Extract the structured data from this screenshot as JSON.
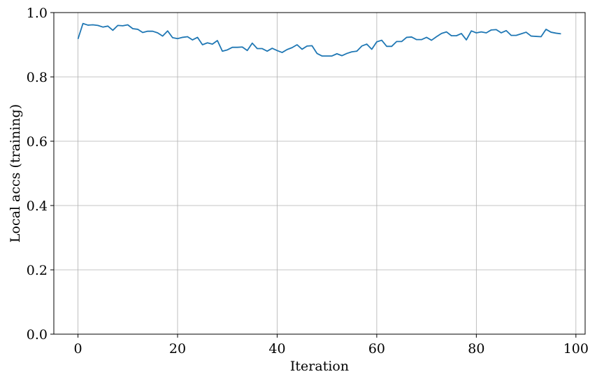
{
  "chart_data": {
    "type": "line",
    "title": "",
    "xlabel": "Iteration",
    "ylabel": "Local accs (training)",
    "xlim": [
      -4.85,
      101.85
    ],
    "ylim": [
      0.0,
      1.0
    ],
    "xticks": [
      0,
      20,
      40,
      60,
      80,
      100
    ],
    "yticks": [
      0.0,
      0.2,
      0.4,
      0.6,
      0.8,
      1.0
    ],
    "xtick_labels": [
      "0",
      "20",
      "40",
      "60",
      "80",
      "100"
    ],
    "ytick_labels": [
      "0.0",
      "0.2",
      "0.4",
      "0.6",
      "0.8",
      "1.0"
    ],
    "grid": true,
    "legend": "none",
    "series": [
      {
        "color": "#1f77b4",
        "x": [
          0,
          1,
          2,
          3,
          4,
          5,
          6,
          7,
          8,
          9,
          10,
          11,
          12,
          13,
          14,
          15,
          16,
          17,
          18,
          19,
          20,
          21,
          22,
          23,
          24,
          25,
          26,
          27,
          28,
          29,
          30,
          31,
          32,
          33,
          34,
          35,
          36,
          37,
          38,
          39,
          40,
          41,
          42,
          43,
          44,
          45,
          46,
          47,
          48,
          49,
          50,
          51,
          52,
          53,
          54,
          55,
          56,
          57,
          58,
          59,
          60,
          61,
          62,
          63,
          64,
          65,
          66,
          67,
          68,
          69,
          70,
          71,
          72,
          73,
          74,
          75,
          76,
          77,
          78,
          79,
          80,
          81,
          82,
          83,
          84,
          85,
          86,
          87,
          88,
          89,
          90,
          91,
          92,
          93,
          94,
          95,
          96,
          97
        ],
        "values": [
          0.918,
          0.966,
          0.961,
          0.962,
          0.96,
          0.955,
          0.958,
          0.945,
          0.96,
          0.959,
          0.962,
          0.95,
          0.948,
          0.938,
          0.942,
          0.942,
          0.937,
          0.927,
          0.943,
          0.922,
          0.919,
          0.923,
          0.925,
          0.915,
          0.923,
          0.9,
          0.906,
          0.902,
          0.913,
          0.88,
          0.884,
          0.892,
          0.892,
          0.893,
          0.882,
          0.905,
          0.888,
          0.888,
          0.88,
          0.889,
          0.882,
          0.876,
          0.885,
          0.891,
          0.9,
          0.886,
          0.896,
          0.897,
          0.873,
          0.865,
          0.865,
          0.865,
          0.872,
          0.866,
          0.873,
          0.878,
          0.88,
          0.896,
          0.902,
          0.886,
          0.909,
          0.914,
          0.895,
          0.895,
          0.91,
          0.91,
          0.923,
          0.924,
          0.916,
          0.916,
          0.923,
          0.914,
          0.925,
          0.935,
          0.94,
          0.928,
          0.928,
          0.935,
          0.915,
          0.943,
          0.937,
          0.94,
          0.937,
          0.946,
          0.947,
          0.937,
          0.944,
          0.929,
          0.929,
          0.934,
          0.939,
          0.927,
          0.926,
          0.925,
          0.948,
          0.939,
          0.936,
          0.934
        ]
      }
    ]
  }
}
